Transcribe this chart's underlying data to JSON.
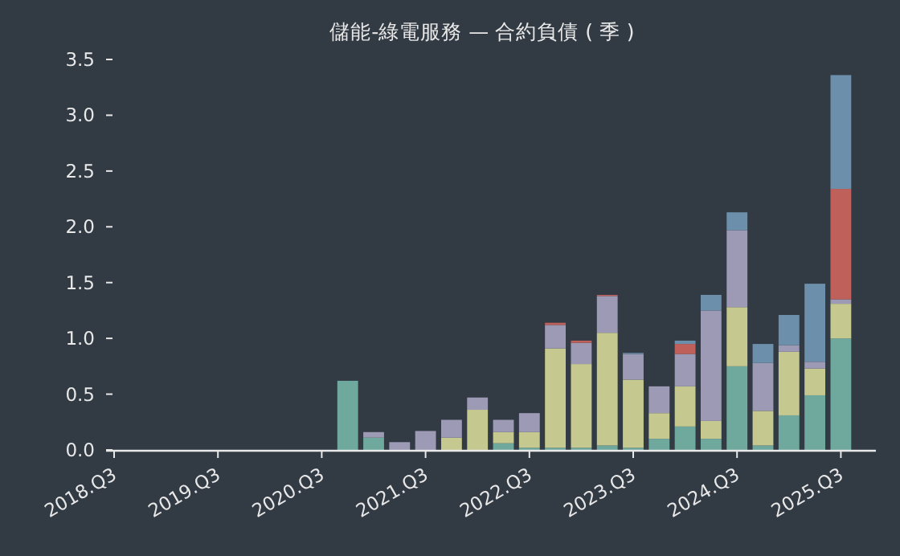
{
  "chart_data": {
    "type": "bar",
    "stacked": true,
    "title": "儲能-綠電服務 — 合約負債 ( 季 )",
    "categories": [
      "2018.Q3",
      null,
      null,
      null,
      "2019.Q3",
      null,
      null,
      null,
      "2020.Q3",
      null,
      null,
      null,
      "2021.Q3",
      null,
      null,
      null,
      "2022.Q3",
      null,
      null,
      null,
      "2023.Q3",
      null,
      null,
      null,
      "2024.Q3",
      null,
      null,
      null,
      "2025.Q3"
    ],
    "series": [
      {
        "color": "#6fa89c",
        "values": [
          null,
          null,
          null,
          null,
          null,
          null,
          null,
          null,
          null,
          0.62,
          0.11,
          null,
          null,
          null,
          null,
          0.06,
          0.02,
          0.02,
          0.02,
          0.04,
          0.02,
          0.1,
          0.21,
          0.1,
          0.75,
          0.04,
          0.31,
          0.49,
          1.0
        ]
      },
      {
        "color": "#c5c88f",
        "values": [
          null,
          null,
          null,
          null,
          null,
          null,
          null,
          null,
          null,
          null,
          null,
          null,
          null,
          0.11,
          0.36,
          0.1,
          0.14,
          0.89,
          0.75,
          1.01,
          0.61,
          0.23,
          0.36,
          0.16,
          0.53,
          0.31,
          0.57,
          0.24,
          0.31
        ]
      },
      {
        "color": "#9c9ab4",
        "values": [
          null,
          null,
          null,
          null,
          null,
          null,
          null,
          null,
          null,
          null,
          0.05,
          0.07,
          0.17,
          0.16,
          0.11,
          0.11,
          0.17,
          0.21,
          0.19,
          0.33,
          0.23,
          0.24,
          0.29,
          0.99,
          0.69,
          0.43,
          0.06,
          0.06,
          0.04
        ]
      },
      {
        "color": "#c0605a",
        "values": [
          null,
          null,
          null,
          null,
          null,
          null,
          null,
          null,
          null,
          null,
          null,
          null,
          null,
          null,
          null,
          null,
          null,
          0.02,
          0.02,
          0.01,
          null,
          null,
          0.09,
          null,
          null,
          null,
          null,
          null,
          0.99
        ]
      },
      {
        "color": "#6c8fab",
        "values": [
          null,
          null,
          null,
          null,
          null,
          null,
          null,
          null,
          null,
          null,
          null,
          null,
          null,
          null,
          null,
          null,
          null,
          null,
          null,
          null,
          0.01,
          null,
          0.03,
          0.14,
          0.16,
          0.17,
          0.27,
          0.7,
          1.02
        ]
      }
    ],
    "ylim": [
      0,
      3.5
    ],
    "yticks": [
      {
        "value": 0,
        "label": "0.0"
      },
      {
        "value": 0.5,
        "label": "0.5"
      },
      {
        "value": 1,
        "label": "1.0"
      },
      {
        "value": 1.5,
        "label": "1.5"
      },
      {
        "value": 2,
        "label": "2.0"
      },
      {
        "value": 2.5,
        "label": "2.5"
      },
      {
        "value": 3,
        "label": "3.0"
      },
      {
        "value": 3.5,
        "label": "3.5"
      }
    ],
    "grid": false
  }
}
